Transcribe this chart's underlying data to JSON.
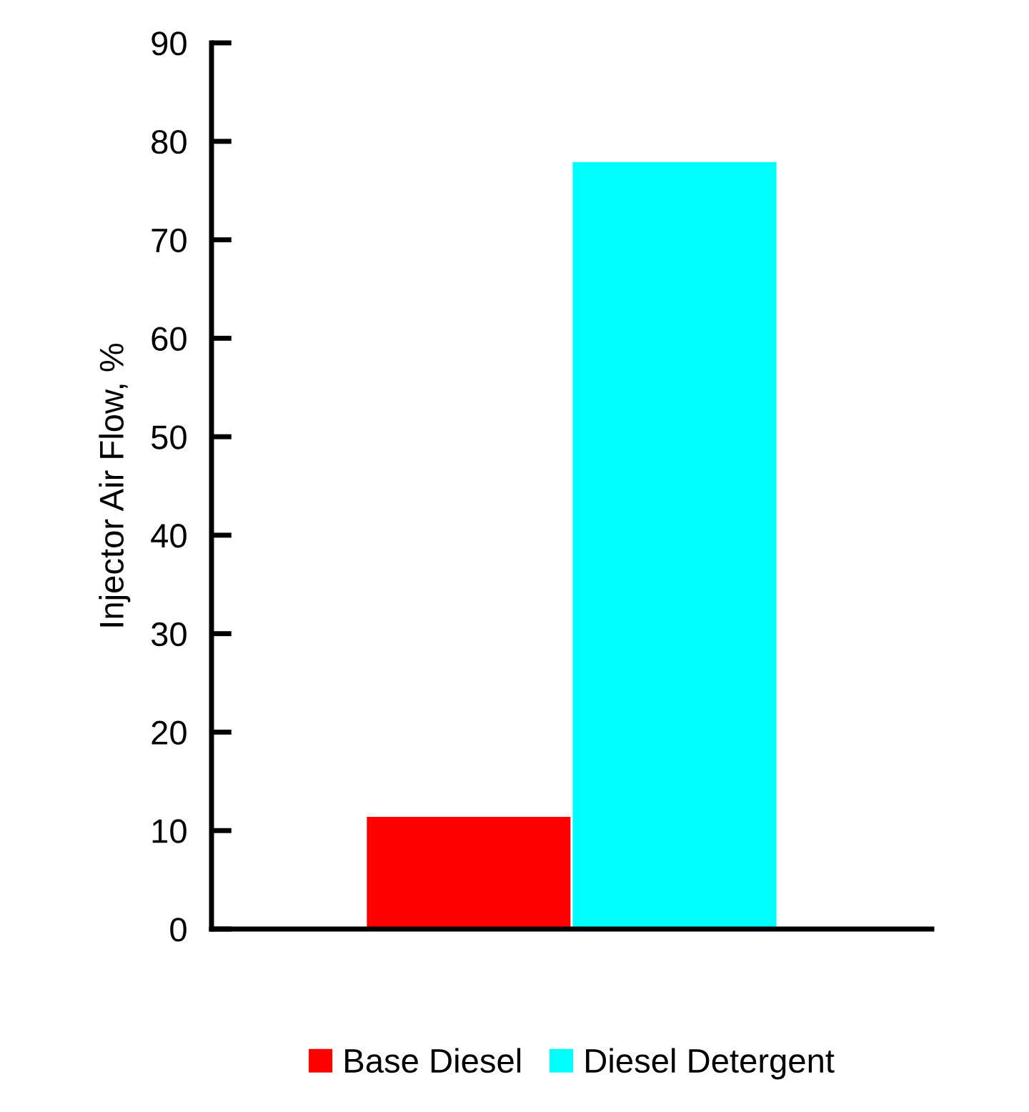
{
  "chart_data": {
    "type": "bar",
    "ylabel": "Injector Air Flow, %",
    "categories": [
      null
    ],
    "series": [
      {
        "name": "Base Diesel",
        "color": "#ff0000",
        "values": [
          11.5
        ]
      },
      {
        "name": "Diesel Detergent",
        "color": "#00ffff",
        "values": [
          78
        ]
      }
    ],
    "ylim": [
      0,
      90
    ],
    "yticks": [
      0,
      10,
      20,
      30,
      40,
      50,
      60,
      70,
      80,
      90
    ],
    "grid": false,
    "legend": "bottom",
    "tick_labels": "y"
  }
}
